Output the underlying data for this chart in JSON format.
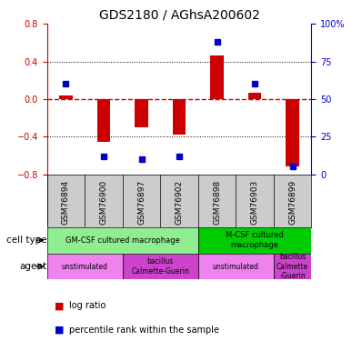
{
  "title": "GDS2180 / AGhsA200602",
  "samples": [
    "GSM76894",
    "GSM76900",
    "GSM76897",
    "GSM76902",
    "GSM76898",
    "GSM76903",
    "GSM76899"
  ],
  "log_ratio": [
    0.04,
    -0.45,
    -0.3,
    -0.38,
    0.46,
    0.07,
    -0.72
  ],
  "percentile": [
    0.6,
    0.12,
    0.1,
    0.12,
    0.88,
    0.6,
    0.05
  ],
  "ylim_left": [
    -0.8,
    0.8
  ],
  "yticks_left": [
    -0.8,
    -0.4,
    0.0,
    0.4,
    0.8
  ],
  "yticks_right": [
    0,
    25,
    50,
    75,
    100
  ],
  "yticks_right_vals": [
    0.0,
    0.25,
    0.5,
    0.75,
    1.0
  ],
  "ylabel_left_color": "#cc0000",
  "ylabel_right_color": "#0000cc",
  "bar_color": "#cc0000",
  "dot_color": "#0000cc",
  "zero_line_color": "#cc0000",
  "grid_color": "#000000",
  "cell_type_row": [
    {
      "label": "GM-CSF cultured macrophage",
      "start": 0,
      "end": 4,
      "color": "#90ee90"
    },
    {
      "label": "M-CSF cultured\nmacrophage",
      "start": 4,
      "end": 7,
      "color": "#00cc00"
    }
  ],
  "agent_row": [
    {
      "label": "unstimulated",
      "start": 0,
      "end": 2,
      "color": "#ee82ee"
    },
    {
      "label": "bacillus\nCalmette-Guerin",
      "start": 2,
      "end": 4,
      "color": "#cc44cc"
    },
    {
      "label": "unstimulated",
      "start": 4,
      "end": 6,
      "color": "#ee82ee"
    },
    {
      "label": "bacillus\nCalmette\n-Guerin",
      "start": 6,
      "end": 7,
      "color": "#cc44cc"
    }
  ],
  "legend_items": [
    {
      "label": "log ratio",
      "color": "#cc0000"
    },
    {
      "label": "percentile rank within the sample",
      "color": "#0000cc"
    }
  ],
  "cell_type_label": "cell type",
  "agent_label": "agent",
  "bg_color": "#ffffff"
}
